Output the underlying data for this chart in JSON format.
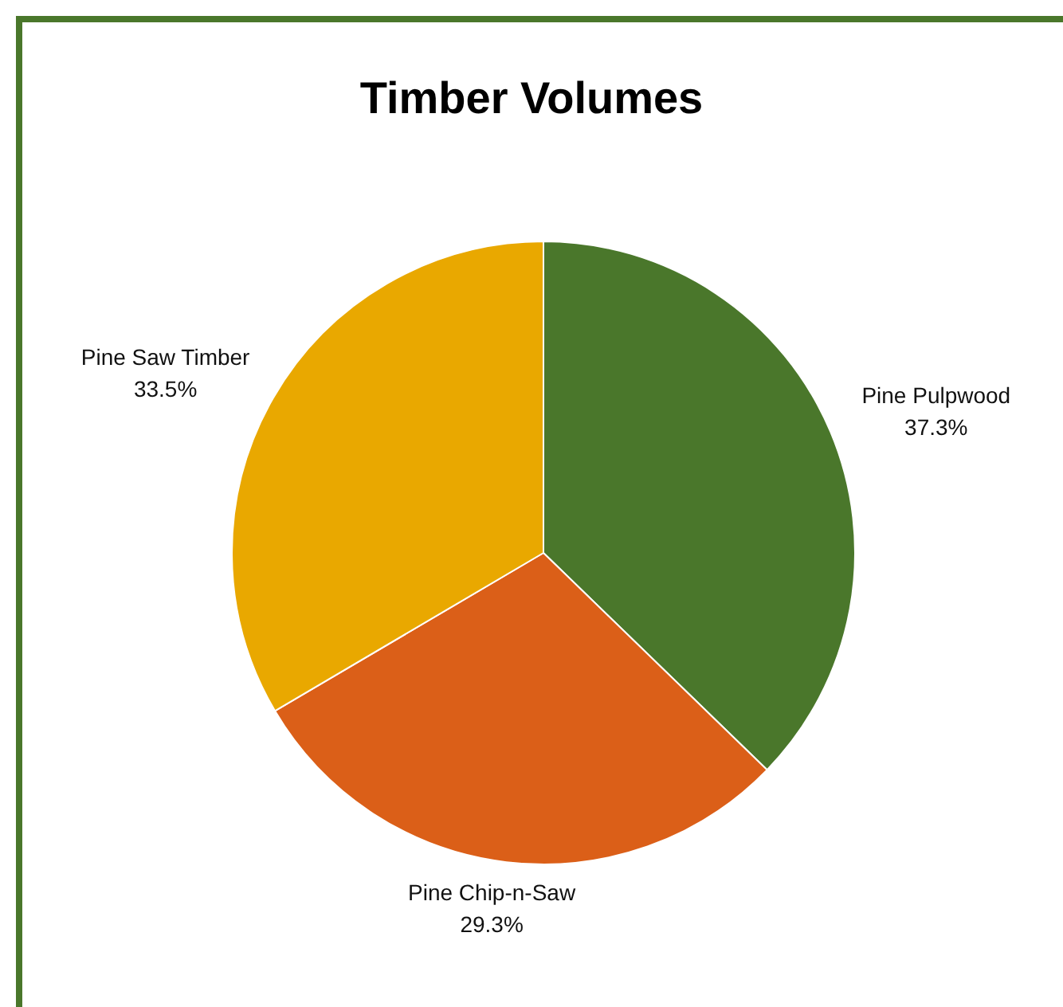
{
  "chart_data": {
    "type": "pie",
    "title": "Timber Volumes",
    "categories": [
      "Pine Pulpwood",
      "Pine Chip-n-Saw",
      "Pine Saw Timber"
    ],
    "values": [
      37.3,
      29.3,
      33.5
    ],
    "colors": [
      "#4a772b",
      "#db5f18",
      "#e9a800"
    ],
    "value_labels": [
      "37.3%",
      "29.3%",
      "33.5%"
    ],
    "legend": false
  }
}
